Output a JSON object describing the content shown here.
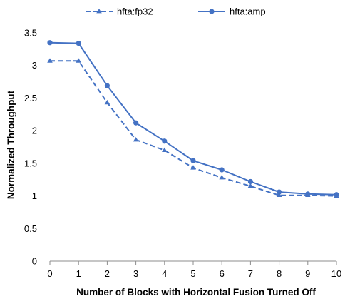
{
  "chart_data": {
    "type": "line",
    "title": "",
    "xlabel": "Number of Blocks with Horizontal Fusion Turned Off",
    "ylabel": "Normalized Throughput",
    "x": [
      0,
      1,
      2,
      3,
      4,
      5,
      6,
      7,
      8,
      9,
      10
    ],
    "xlim": [
      0,
      10
    ],
    "ylim": [
      0,
      3.5
    ],
    "x_ticks": [
      "0",
      "1",
      "2",
      "3",
      "4",
      "5",
      "6",
      "7",
      "8",
      "9",
      "10"
    ],
    "y_ticks": [
      "0",
      "0.5",
      "1",
      "1.5",
      "2",
      "2.5",
      "3",
      "3.5"
    ],
    "grid": false,
    "legend_position": "top",
    "series": [
      {
        "name": "hfta:fp32",
        "values": [
          3.07,
          3.07,
          2.43,
          1.86,
          1.7,
          1.43,
          1.28,
          1.15,
          1.01,
          1.01,
          1.0
        ],
        "marker": "triangle",
        "line_style": "dashed",
        "color": "#4472c4"
      },
      {
        "name": "hfta:amp",
        "values": [
          3.35,
          3.34,
          2.69,
          2.12,
          1.84,
          1.54,
          1.4,
          1.22,
          1.06,
          1.03,
          1.02
        ],
        "marker": "circle",
        "line_style": "solid",
        "color": "#4472c4"
      }
    ]
  }
}
